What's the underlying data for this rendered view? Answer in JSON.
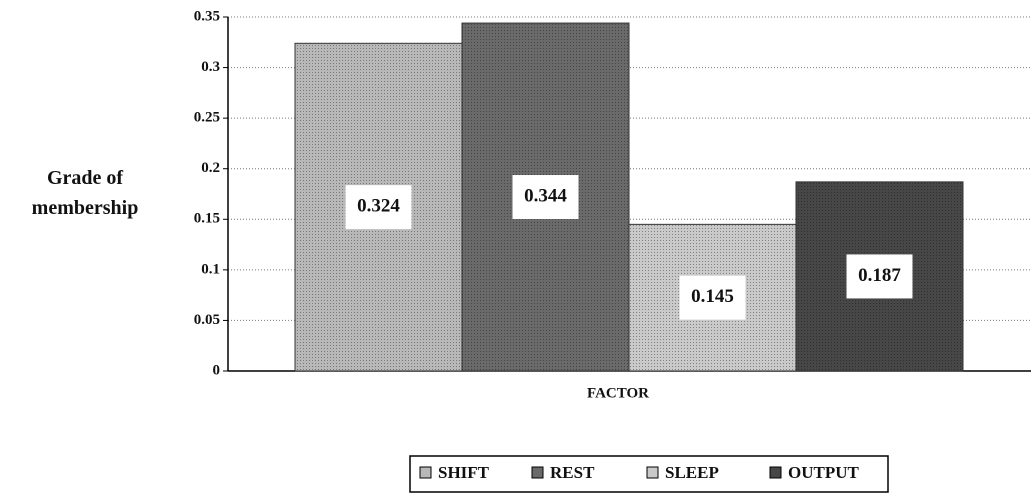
{
  "chart_data": {
    "type": "bar",
    "y_label": "Grade of membership",
    "x_label": "FACTOR",
    "categories": [
      "FACTOR"
    ],
    "series": [
      {
        "name": "SHIFT",
        "color": "#b8b8b8",
        "values": [
          0.324
        ]
      },
      {
        "name": "REST",
        "color": "#6a6a6a",
        "values": [
          0.344
        ]
      },
      {
        "name": "SLEEP",
        "color": "#c9c9c9",
        "values": [
          0.145
        ]
      },
      {
        "name": "OUTPUT",
        "color": "#474747",
        "values": [
          0.187
        ]
      }
    ],
    "ylim": [
      0,
      0.35
    ],
    "yticks": [
      0,
      0.05,
      0.1,
      0.15,
      0.2,
      0.25,
      0.3,
      0.35
    ],
    "grid": true,
    "legend": "bottom"
  }
}
